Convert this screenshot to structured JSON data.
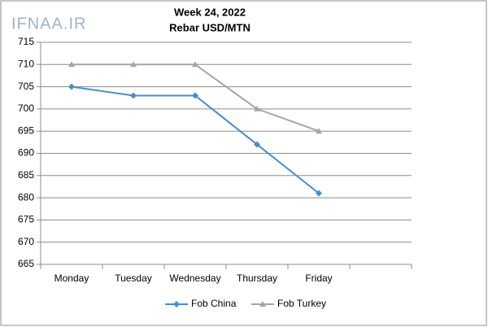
{
  "chart_data": {
    "type": "line",
    "title": "Week 24, 2022",
    "subtitle": "Rebar USD/MTN",
    "watermark": "IFNAA.IR",
    "categories": [
      "Monday",
      "Tuesday",
      "Wednesday",
      "Thursday",
      "Friday",
      null
    ],
    "series": [
      {
        "name": "Fob China",
        "color": "#4a8ec9",
        "marker": "diamond",
        "values": [
          705,
          703,
          703,
          692,
          681,
          null
        ]
      },
      {
        "name": "Fob Turkey",
        "color": "#a5a5a5",
        "marker": "triangle",
        "values": [
          710,
          710,
          710,
          700,
          695,
          null
        ]
      }
    ],
    "ylim": [
      665,
      715
    ],
    "yticks": [
      665,
      670,
      675,
      680,
      685,
      690,
      695,
      700,
      705,
      710,
      715
    ],
    "grid": true,
    "legend": "bottom"
  }
}
